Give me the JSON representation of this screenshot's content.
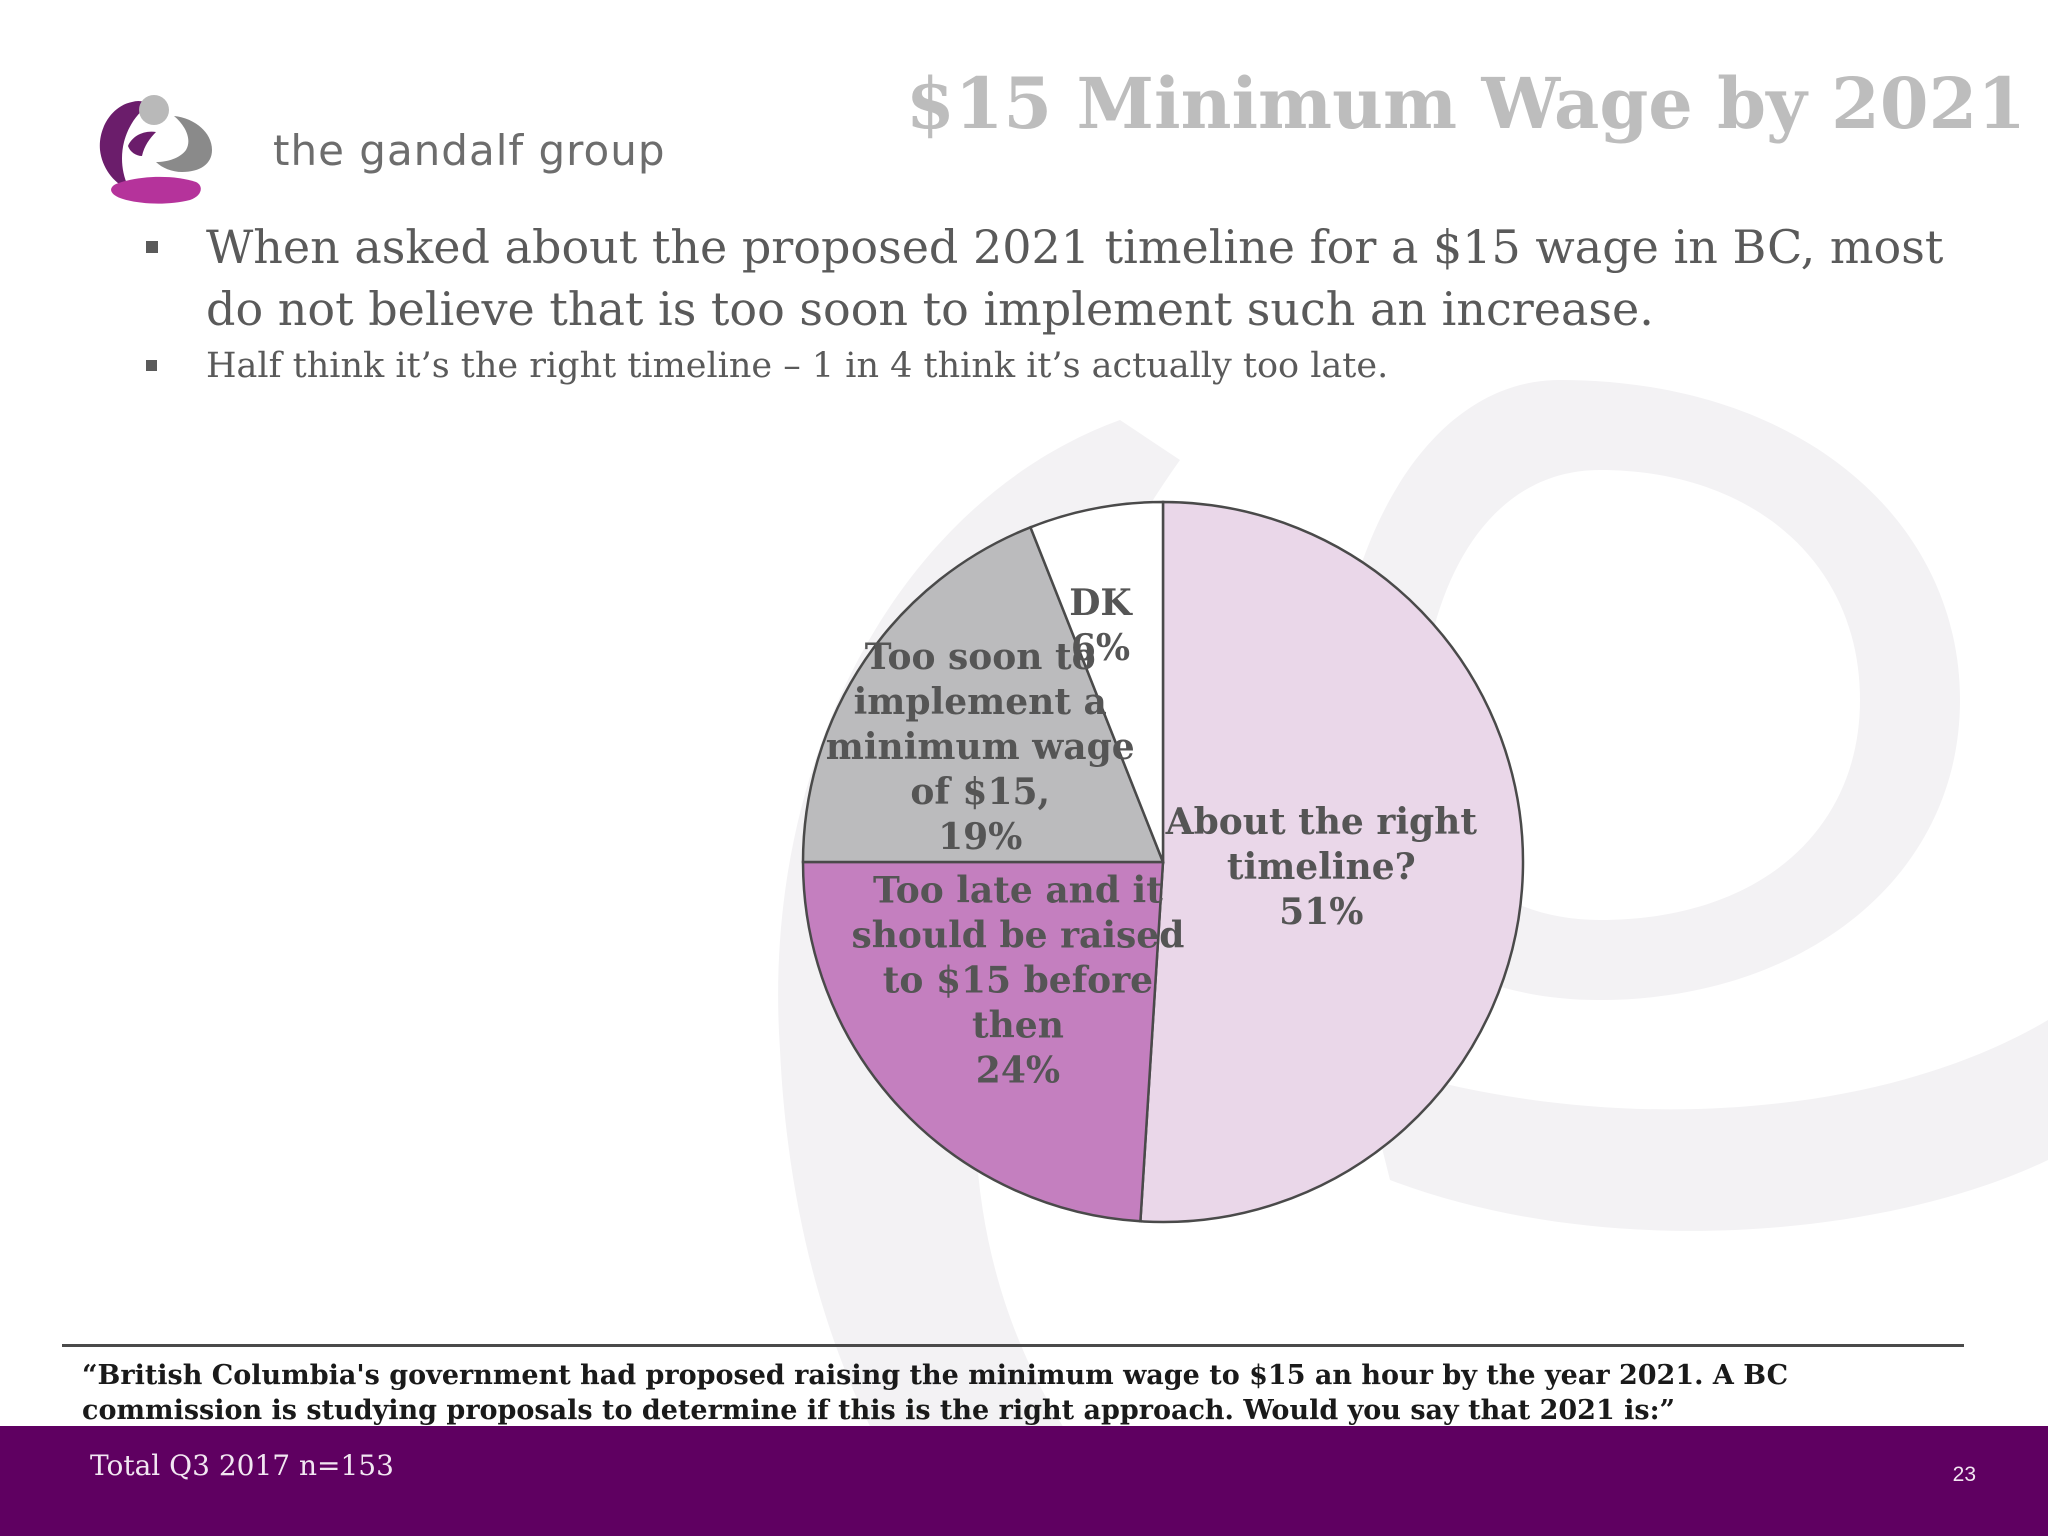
{
  "header": {
    "brand_name": "the gandalf group",
    "title": "$15 Minimum Wage by 2021"
  },
  "bullets": [
    {
      "text": "When asked about the proposed 2021 timeline for a $15 wage in BC, most do not believe that is too soon to implement such an increase."
    },
    {
      "text": "Half think it’s the right timeline – 1 in 4 think it’s actually too late."
    }
  ],
  "chart_data": {
    "type": "pie",
    "start_angle_deg": 0,
    "direction": "clockwise",
    "slices": [
      {
        "label_lines": [
          "About the right",
          "timeline?",
          "51%"
        ],
        "value": 51,
        "color": "#ead7e9"
      },
      {
        "label_lines": [
          "Too late and it",
          "should be raised",
          "to $15 before",
          "then",
          "24%"
        ],
        "value": 24,
        "color": "#c47fbf"
      },
      {
        "label_lines": [
          "Too soon to",
          "implement a",
          "minimum wage",
          "of $15,",
          "19%"
        ],
        "value": 19,
        "color": "#bbbbbd"
      },
      {
        "label_lines": [
          "DK",
          "6%"
        ],
        "value": 6,
        "color": "#ffffff"
      }
    ],
    "outline_color": "#4a4a4a"
  },
  "question": "“British Columbia's government had proposed raising the minimum wage to $15 an hour by the year 2021. A BC commission is studying proposals to determine if this is the right approach. Would you say that 2021 is:”",
  "footer": {
    "sample": "Total Q3 2017 n=153",
    "page_number": "23"
  },
  "colors": {
    "footer_band": "#5f0061",
    "title": "#bdbdbd",
    "logo_purple": "#6b1d6b",
    "logo_magenta": "#b5339b",
    "logo_grey": "#8a8a8a"
  },
  "icons": {
    "logo": "gandalf-g-logo-icon",
    "bullet": "square-bullet-icon"
  }
}
